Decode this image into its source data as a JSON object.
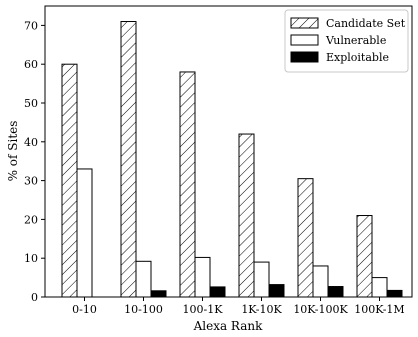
{
  "chart_data": {
    "type": "bar",
    "title": "",
    "xlabel": "Alexa Rank",
    "ylabel": "% of Sites",
    "categories": [
      "0-10",
      "10-100",
      "100-1K",
      "1K-10K",
      "10K-100K",
      "100K-1M"
    ],
    "ylim": [
      0,
      75
    ],
    "yticks": [
      0,
      10,
      20,
      30,
      40,
      50,
      60,
      70
    ],
    "grid": false,
    "legend_position": "top-right",
    "series": [
      {
        "name": "Candidate Set",
        "fill": "hatch",
        "values": [
          60,
          71,
          58,
          42,
          30.5,
          21
        ]
      },
      {
        "name": "Vulnerable",
        "fill": "#ffffff",
        "values": [
          33,
          9.2,
          10.2,
          9,
          8,
          5
        ]
      },
      {
        "name": "Exploitable",
        "fill": "#000000",
        "values": [
          0,
          1.6,
          2.6,
          3.2,
          2.7,
          1.7
        ]
      }
    ]
  }
}
